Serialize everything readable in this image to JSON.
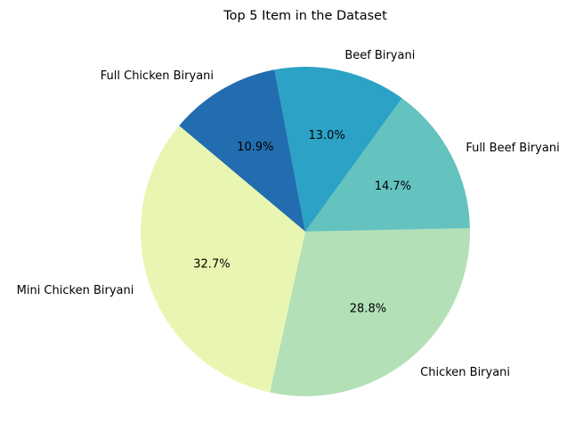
{
  "chart_data": {
    "type": "pie",
    "title": "Top 5 Item in the Dataset",
    "slices": [
      {
        "label": "Mini Chicken Biryani",
        "pct_label": "32.7%",
        "value": 32.7,
        "color": "#e8f6b1"
      },
      {
        "label": "Chicken Biryani",
        "pct_label": "28.8%",
        "value": 28.8,
        "color": "#b3e0b7"
      },
      {
        "label": "Full Beef Biryani",
        "pct_label": "14.7%",
        "value": 14.7,
        "color": "#64c2bf"
      },
      {
        "label": "Beef Biryani",
        "pct_label": "13.0%",
        "value": 13.0,
        "color": "#2ca2c6"
      },
      {
        "label": "Full Chicken Biryani",
        "pct_label": "10.9%",
        "value": 10.9,
        "color": "#216daf"
      }
    ],
    "legend": "none",
    "start_angle_deg": 140,
    "direction": "counterclockwise"
  }
}
